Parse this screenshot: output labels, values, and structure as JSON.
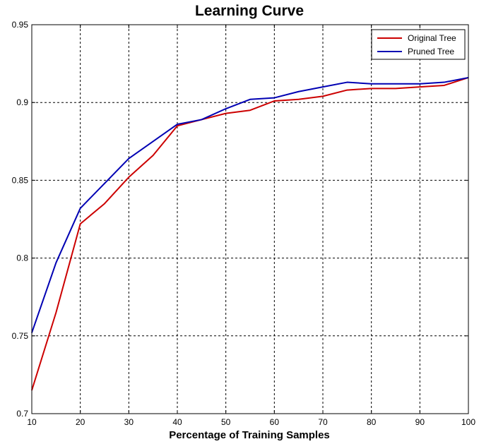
{
  "chart_data": {
    "type": "line",
    "title": "Learning Curve",
    "xlabel": "Percentage of Training Samples",
    "ylabel": "",
    "xlim": [
      10,
      100
    ],
    "ylim": [
      0.7,
      0.95
    ],
    "xticks": [
      10,
      20,
      30,
      40,
      50,
      60,
      70,
      80,
      90,
      100
    ],
    "yticks": [
      0.7,
      0.75,
      0.8,
      0.85,
      0.9,
      0.95
    ],
    "grid": true,
    "legend_position": "top-right",
    "x": [
      10,
      15,
      20,
      25,
      30,
      35,
      40,
      45,
      50,
      55,
      60,
      65,
      70,
      75,
      80,
      85,
      90,
      95,
      100
    ],
    "series": [
      {
        "name": "Original Tree",
        "color": "#cc0000",
        "values": [
          0.715,
          0.765,
          0.822,
          0.835,
          0.852,
          0.866,
          0.885,
          0.889,
          0.893,
          0.895,
          0.901,
          0.902,
          0.904,
          0.908,
          0.909,
          0.909,
          0.91,
          0.911,
          0.916
        ]
      },
      {
        "name": "Pruned Tree",
        "color": "#0000b3",
        "values": [
          0.752,
          0.797,
          0.832,
          0.848,
          0.864,
          0.875,
          0.886,
          0.889,
          0.896,
          0.902,
          0.903,
          0.907,
          0.91,
          0.913,
          0.912,
          0.912,
          0.912,
          0.913,
          0.916
        ]
      }
    ]
  }
}
